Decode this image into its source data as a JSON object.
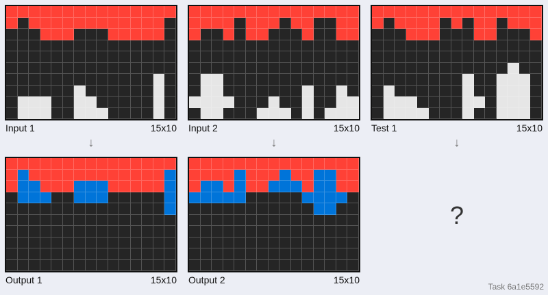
{
  "panels": {
    "input1": {
      "label": "Input 1",
      "size": "15x10",
      "grid": [
        [
          2,
          2,
          2,
          2,
          2,
          2,
          2,
          2,
          2,
          2,
          2,
          2,
          2,
          2,
          2
        ],
        [
          2,
          0,
          2,
          2,
          2,
          2,
          2,
          2,
          2,
          2,
          2,
          2,
          2,
          2,
          0
        ],
        [
          0,
          0,
          0,
          2,
          2,
          2,
          0,
          0,
          0,
          2,
          2,
          2,
          2,
          2,
          0
        ],
        [
          0,
          0,
          0,
          0,
          0,
          0,
          0,
          0,
          0,
          0,
          0,
          0,
          0,
          0,
          0
        ],
        [
          0,
          0,
          0,
          0,
          0,
          0,
          0,
          0,
          0,
          0,
          0,
          0,
          0,
          0,
          0
        ],
        [
          0,
          0,
          0,
          0,
          0,
          0,
          0,
          0,
          0,
          0,
          0,
          0,
          0,
          0,
          0
        ],
        [
          0,
          0,
          0,
          0,
          0,
          0,
          0,
          0,
          0,
          0,
          0,
          0,
          0,
          5,
          0
        ],
        [
          0,
          0,
          0,
          0,
          0,
          0,
          5,
          0,
          0,
          0,
          0,
          0,
          0,
          5,
          0
        ],
        [
          0,
          5,
          5,
          5,
          0,
          0,
          5,
          5,
          0,
          0,
          0,
          0,
          0,
          5,
          0
        ],
        [
          0,
          5,
          5,
          5,
          0,
          0,
          5,
          5,
          5,
          0,
          0,
          0,
          0,
          5,
          0
        ]
      ]
    },
    "output1": {
      "label": "Output 1",
      "size": "15x10",
      "grid": [
        [
          2,
          2,
          2,
          2,
          2,
          2,
          2,
          2,
          2,
          2,
          2,
          2,
          2,
          2,
          2
        ],
        [
          2,
          1,
          2,
          2,
          2,
          2,
          2,
          2,
          2,
          2,
          2,
          2,
          2,
          2,
          1
        ],
        [
          2,
          1,
          1,
          2,
          2,
          2,
          1,
          1,
          1,
          2,
          2,
          2,
          2,
          2,
          1
        ],
        [
          0,
          1,
          1,
          1,
          0,
          0,
          1,
          1,
          1,
          0,
          0,
          0,
          0,
          0,
          1
        ],
        [
          0,
          0,
          0,
          0,
          0,
          0,
          0,
          0,
          0,
          0,
          0,
          0,
          0,
          0,
          1
        ],
        [
          0,
          0,
          0,
          0,
          0,
          0,
          0,
          0,
          0,
          0,
          0,
          0,
          0,
          0,
          0
        ],
        [
          0,
          0,
          0,
          0,
          0,
          0,
          0,
          0,
          0,
          0,
          0,
          0,
          0,
          0,
          0
        ],
        [
          0,
          0,
          0,
          0,
          0,
          0,
          0,
          0,
          0,
          0,
          0,
          0,
          0,
          0,
          0
        ],
        [
          0,
          0,
          0,
          0,
          0,
          0,
          0,
          0,
          0,
          0,
          0,
          0,
          0,
          0,
          0
        ],
        [
          0,
          0,
          0,
          0,
          0,
          0,
          0,
          0,
          0,
          0,
          0,
          0,
          0,
          0,
          0
        ]
      ]
    },
    "input2": {
      "label": "Input 2",
      "size": "15x10",
      "grid": [
        [
          2,
          2,
          2,
          2,
          2,
          2,
          2,
          2,
          2,
          2,
          2,
          2,
          2,
          2,
          2
        ],
        [
          2,
          2,
          2,
          2,
          0,
          2,
          2,
          2,
          0,
          2,
          2,
          0,
          0,
          2,
          2
        ],
        [
          2,
          0,
          0,
          2,
          0,
          2,
          2,
          0,
          0,
          0,
          2,
          0,
          0,
          2,
          2
        ],
        [
          0,
          0,
          0,
          0,
          0,
          0,
          0,
          0,
          0,
          0,
          0,
          0,
          0,
          0,
          0
        ],
        [
          0,
          0,
          0,
          0,
          0,
          0,
          0,
          0,
          0,
          0,
          0,
          0,
          0,
          0,
          0
        ],
        [
          0,
          0,
          0,
          0,
          0,
          0,
          0,
          0,
          0,
          0,
          0,
          0,
          0,
          0,
          0
        ],
        [
          0,
          5,
          5,
          0,
          0,
          0,
          0,
          0,
          0,
          0,
          0,
          0,
          0,
          0,
          0
        ],
        [
          0,
          5,
          5,
          0,
          0,
          0,
          0,
          0,
          0,
          0,
          5,
          0,
          0,
          5,
          0
        ],
        [
          5,
          5,
          5,
          5,
          0,
          0,
          0,
          5,
          0,
          0,
          5,
          0,
          0,
          5,
          5
        ],
        [
          0,
          5,
          5,
          0,
          0,
          0,
          5,
          5,
          5,
          0,
          5,
          0,
          5,
          5,
          5
        ]
      ]
    },
    "output2": {
      "label": "Output 2",
      "size": "15x10",
      "grid": [
        [
          2,
          2,
          2,
          2,
          2,
          2,
          2,
          2,
          2,
          2,
          2,
          2,
          2,
          2,
          2
        ],
        [
          2,
          2,
          2,
          2,
          1,
          2,
          2,
          2,
          1,
          2,
          2,
          1,
          1,
          2,
          2
        ],
        [
          2,
          1,
          1,
          2,
          1,
          2,
          2,
          1,
          1,
          1,
          2,
          1,
          1,
          2,
          2
        ],
        [
          1,
          1,
          1,
          1,
          1,
          0,
          0,
          0,
          0,
          0,
          1,
          1,
          1,
          1,
          0
        ],
        [
          0,
          0,
          0,
          0,
          0,
          0,
          0,
          0,
          0,
          0,
          0,
          1,
          1,
          0,
          0
        ],
        [
          0,
          0,
          0,
          0,
          0,
          0,
          0,
          0,
          0,
          0,
          0,
          0,
          0,
          0,
          0
        ],
        [
          0,
          0,
          0,
          0,
          0,
          0,
          0,
          0,
          0,
          0,
          0,
          0,
          0,
          0,
          0
        ],
        [
          0,
          0,
          0,
          0,
          0,
          0,
          0,
          0,
          0,
          0,
          0,
          0,
          0,
          0,
          0
        ],
        [
          0,
          0,
          0,
          0,
          0,
          0,
          0,
          0,
          0,
          0,
          0,
          0,
          0,
          0,
          0
        ],
        [
          0,
          0,
          0,
          0,
          0,
          0,
          0,
          0,
          0,
          0,
          0,
          0,
          0,
          0,
          0
        ]
      ]
    },
    "test1": {
      "label": "Test 1",
      "size": "15x10",
      "grid": [
        [
          2,
          2,
          2,
          2,
          2,
          2,
          2,
          2,
          2,
          2,
          2,
          2,
          2,
          2,
          2
        ],
        [
          2,
          0,
          2,
          2,
          2,
          2,
          0,
          2,
          0,
          2,
          2,
          0,
          2,
          2,
          2
        ],
        [
          0,
          0,
          0,
          2,
          2,
          2,
          0,
          0,
          0,
          2,
          2,
          0,
          0,
          0,
          2
        ],
        [
          0,
          0,
          0,
          0,
          0,
          0,
          0,
          0,
          0,
          0,
          0,
          0,
          0,
          0,
          0
        ],
        [
          0,
          0,
          0,
          0,
          0,
          0,
          0,
          0,
          0,
          0,
          0,
          0,
          0,
          0,
          0
        ],
        [
          0,
          0,
          0,
          0,
          0,
          0,
          0,
          0,
          0,
          0,
          0,
          0,
          5,
          0,
          0
        ],
        [
          0,
          0,
          0,
          0,
          0,
          0,
          0,
          0,
          5,
          0,
          0,
          5,
          5,
          5,
          0
        ],
        [
          0,
          5,
          0,
          0,
          0,
          0,
          0,
          0,
          5,
          0,
          0,
          5,
          5,
          5,
          0
        ],
        [
          0,
          5,
          5,
          5,
          0,
          0,
          0,
          0,
          5,
          5,
          0,
          5,
          5,
          5,
          0
        ],
        [
          0,
          5,
          5,
          5,
          5,
          0,
          0,
          0,
          5,
          0,
          0,
          5,
          5,
          5,
          0
        ]
      ]
    }
  },
  "arrows": {
    "glyph": "↓"
  },
  "unknown_output": "?",
  "task_id": "Task 6a1e5592",
  "colors": {
    "0": "#252525",
    "1": "#0074d9",
    "2": "#ff4136",
    "5": "#e6e6e6"
  }
}
